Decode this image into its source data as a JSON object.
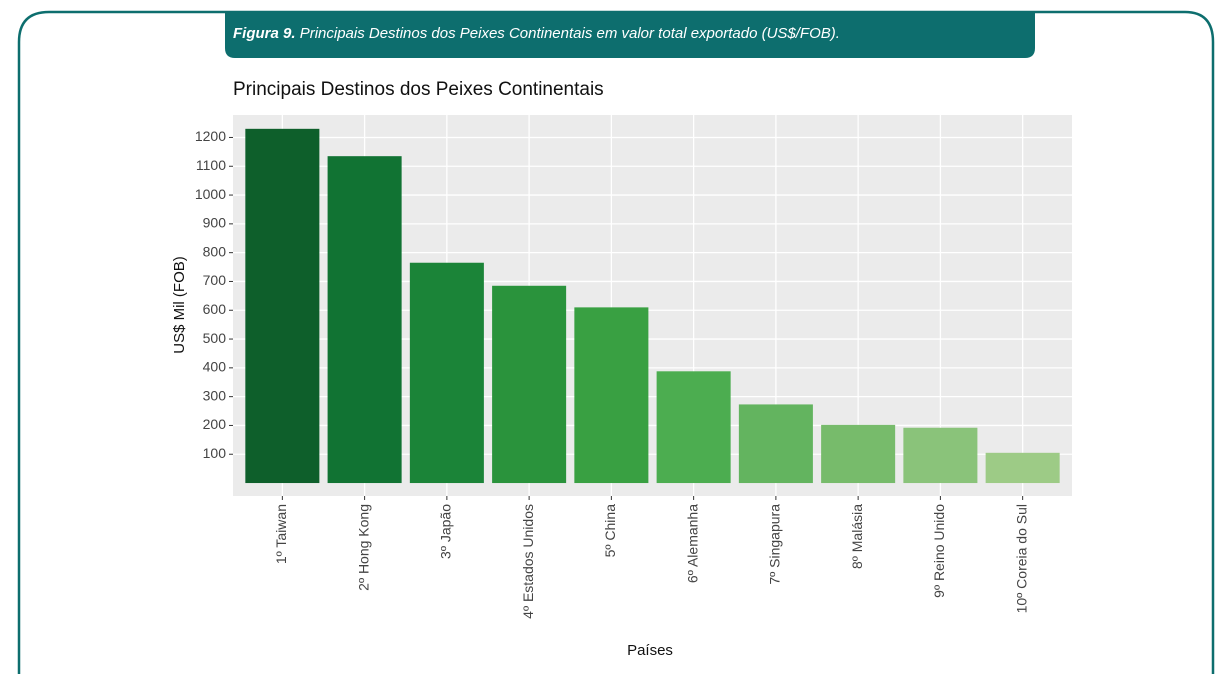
{
  "figure": {
    "label": "Figura 9.",
    "caption": "Principais Destinos dos Peixes Continentais em valor total exportado (US$/FOB)."
  },
  "chart_data": {
    "type": "bar",
    "title": "Principais Destinos dos Peixes Continentais",
    "x_label": "Países",
    "y_label": "US$ Mil (FOB)",
    "categories": [
      "1º Taiwan",
      "2º Hong Kong",
      "3º Japão",
      "4º Estados Unidos",
      "5º China",
      "6º Alemanha",
      "7º Singapura",
      "8º Malásia",
      "9º Reino Unido",
      "10º Coreia do Sul"
    ],
    "values": [
      1230,
      1135,
      765,
      685,
      610,
      388,
      273,
      202,
      192,
      105
    ],
    "colors": [
      "#0e5f2b",
      "#117333",
      "#1b8438",
      "#2a933c",
      "#39a042",
      "#4cad50",
      "#63b45f",
      "#77bb6b",
      "#8ac37a",
      "#9dcb86"
    ],
    "ylim": [
      -45,
      1278
    ],
    "yticks": [
      100,
      200,
      300,
      400,
      500,
      600,
      700,
      800,
      900,
      1000,
      1100,
      1200
    ],
    "grid": true
  }
}
